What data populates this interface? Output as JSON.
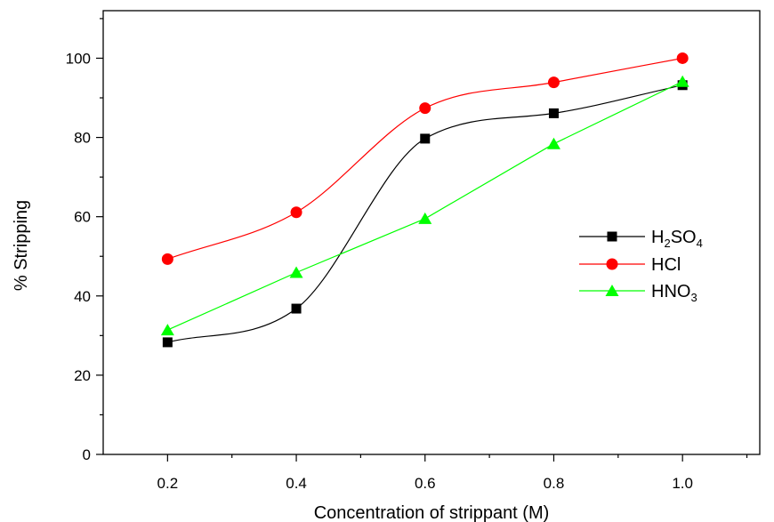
{
  "chart_data": {
    "type": "line",
    "title": "",
    "xlabel": "Concentration of strippant (M)",
    "ylabel": "% Stripping",
    "xlim": [
      0.1,
      1.12
    ],
    "ylim": [
      0,
      112
    ],
    "x": [
      0.2,
      0.4,
      0.6,
      0.8,
      1.0
    ],
    "x_tick_labels": [
      "0.2",
      "0.4",
      "0.6",
      "0.8",
      "1.0"
    ],
    "y_ticks": [
      0,
      20,
      40,
      60,
      80,
      100
    ],
    "y_tick_labels": [
      "0",
      "20",
      "40",
      "60",
      "80",
      "100"
    ],
    "grid": false,
    "legend_position": "right",
    "series": [
      {
        "name": "H2SO4",
        "label_parts": [
          [
            "H",
            ""
          ],
          [
            "2",
            "sub"
          ],
          [
            "SO",
            ""
          ],
          [
            "4",
            "sub"
          ]
        ],
        "values": [
          28.3,
          36.8,
          79.7,
          86.1,
          93.2
        ],
        "color": "#000000",
        "line_color": "#000000",
        "marker": "square",
        "fit": "smooth"
      },
      {
        "name": "HCl",
        "label_parts": [
          [
            "HCl",
            ""
          ]
        ],
        "values": [
          49.3,
          61.1,
          87.4,
          93.9,
          100.0
        ],
        "color": "#ff0000",
        "line_color": "#ff0000",
        "marker": "circle",
        "fit": "smooth"
      },
      {
        "name": "HNO3",
        "label_parts": [
          [
            "HNO",
            ""
          ],
          [
            "3",
            "sub"
          ]
        ],
        "values": [
          31.4,
          45.9,
          59.5,
          78.4,
          94.1
        ],
        "color": "#00ff00",
        "line_color": "#00ff00",
        "marker": "triangle",
        "fit": "linear"
      }
    ]
  }
}
